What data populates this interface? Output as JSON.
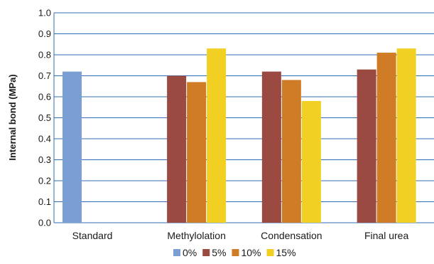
{
  "chart_data": {
    "type": "bar",
    "categories": [
      "Standard",
      "Methylolation",
      "Condensation",
      "Final urea"
    ],
    "series": [
      {
        "name": "0%",
        "color": "#7b9fd3",
        "values": [
          0.72,
          null,
          null,
          null
        ]
      },
      {
        "name": "5%",
        "color": "#9b4a42",
        "values": [
          null,
          0.7,
          0.72,
          0.73
        ]
      },
      {
        "name": "10%",
        "color": "#d07b26",
        "values": [
          null,
          0.67,
          0.68,
          0.81
        ]
      },
      {
        "name": "15%",
        "color": "#f2cf23",
        "values": [
          null,
          0.83,
          0.58,
          0.83
        ]
      }
    ],
    "ylabel": "Internal bond (MPa)",
    "xlabel": "",
    "ylim": [
      0.0,
      1.0
    ],
    "yticks": [
      "0.0",
      "0.1",
      "0.2",
      "0.3",
      "0.4",
      "0.5",
      "0.6",
      "0.7",
      "0.8",
      "0.9",
      "1.0"
    ],
    "grid": true,
    "legend_position": "bottom"
  }
}
